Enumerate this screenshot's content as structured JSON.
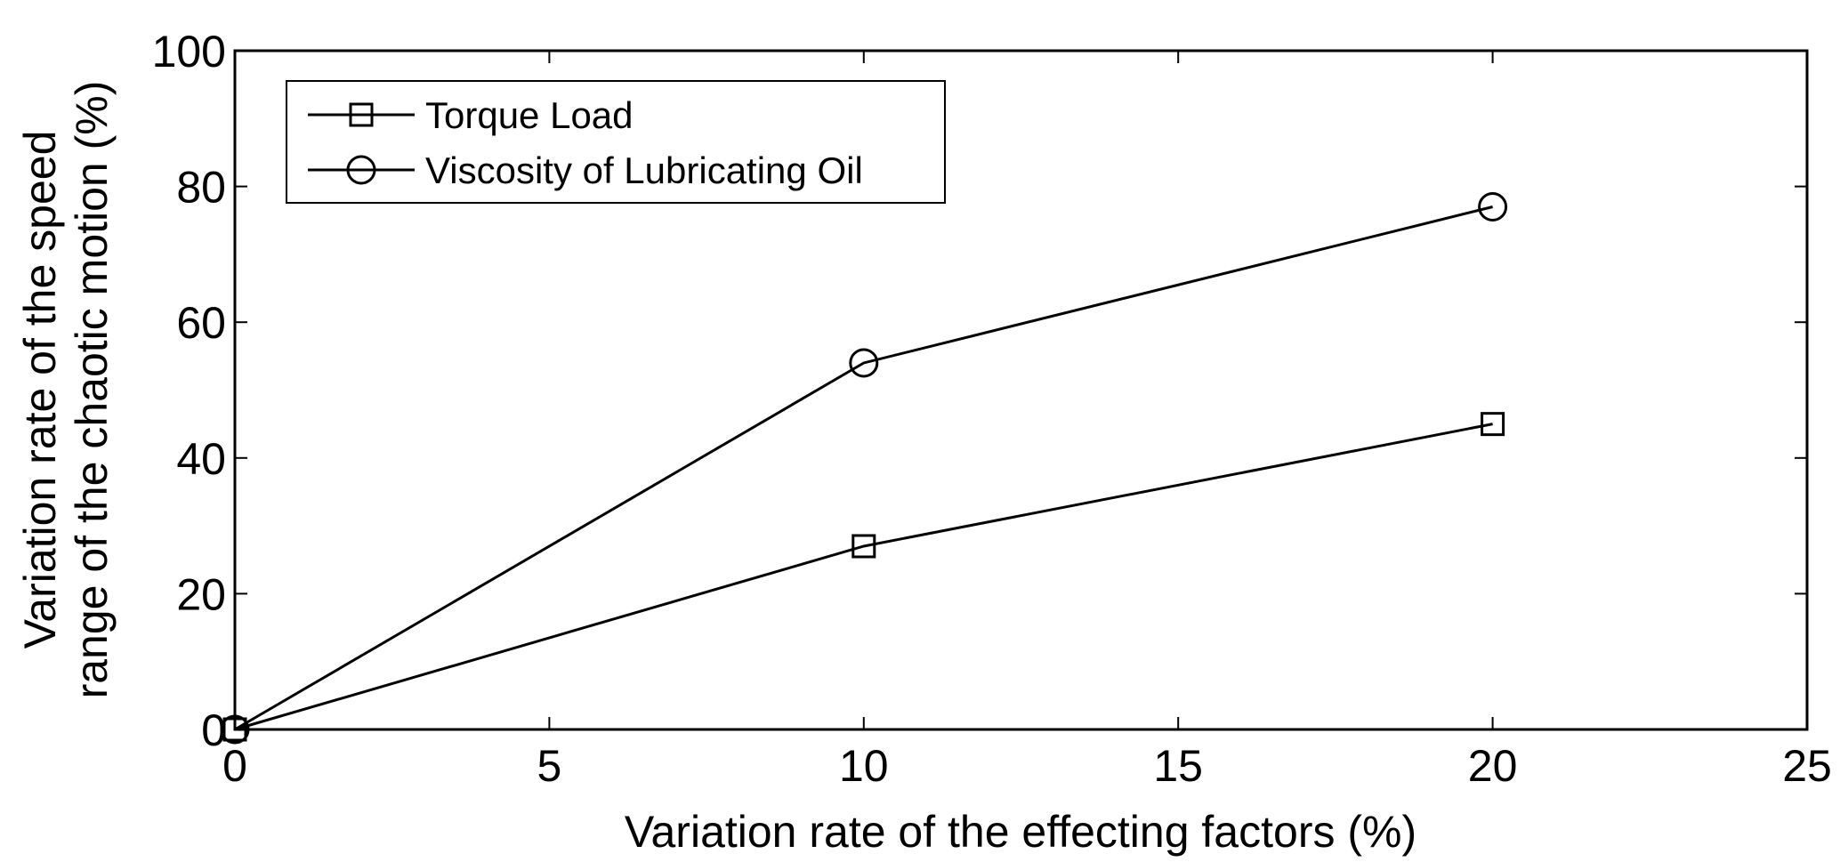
{
  "chart_data": {
    "type": "line",
    "title": "",
    "xlabel": "Variation rate of the effecting factors (%)",
    "ylabel_lines": [
      "Variation rate of the speed",
      "range of the chaotic motion (%)"
    ],
    "xlim": [
      0,
      25
    ],
    "ylim": [
      0,
      100
    ],
    "xticks": [
      0,
      5,
      10,
      15,
      20,
      25
    ],
    "yticks": [
      0,
      20,
      40,
      60,
      80,
      100
    ],
    "grid": false,
    "legend_position": "top-left",
    "series": [
      {
        "name": "Torque Load",
        "marker": "square",
        "color": "#000000",
        "x": [
          0,
          10,
          20
        ],
        "y": [
          0,
          27,
          45
        ]
      },
      {
        "name": "Viscosity of Lubricating Oil",
        "marker": "circle",
        "color": "#000000",
        "x": [
          0,
          10,
          20
        ],
        "y": [
          0,
          54,
          77
        ]
      }
    ]
  }
}
